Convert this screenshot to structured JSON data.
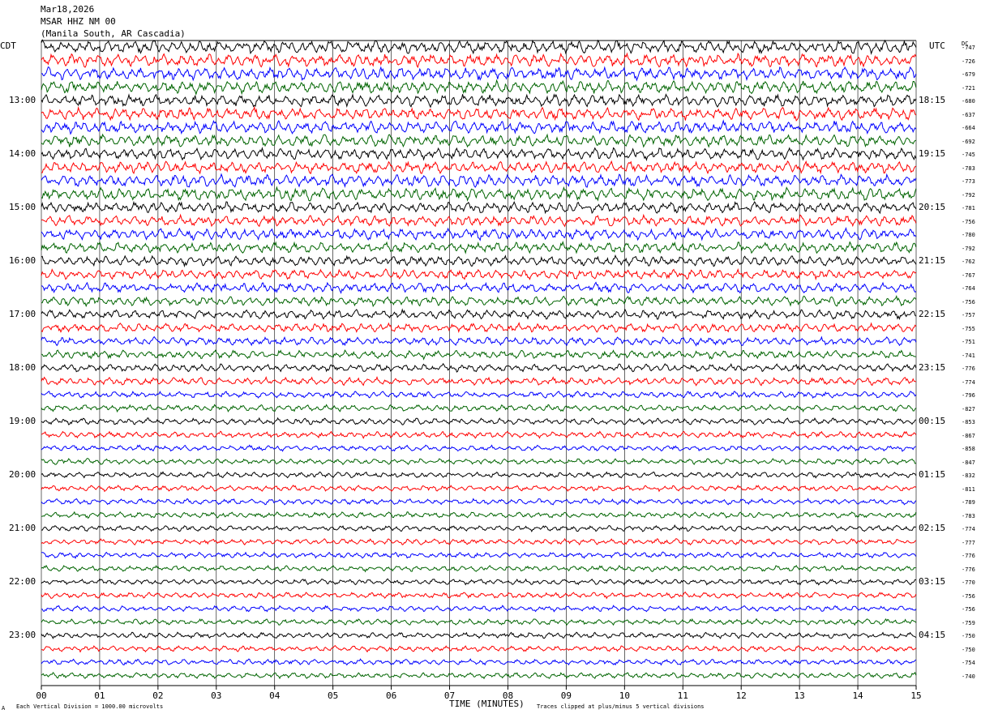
{
  "header": {
    "date": "Mar18,2026",
    "station": "MSAR HHZ NM 00",
    "location": "(Manila South, AR Cascadia)"
  },
  "left_tz": "CDT",
  "right_tz": "UTC",
  "dc_label": "DC",
  "footer": {
    "scale": "Each Vertical Division = 1000.00 microvolts",
    "clip": "Traces clipped at plus/minus 5 vertical divisions",
    "corner_mark": "A"
  },
  "colors": {
    "black": "#000000",
    "red": "#ff0000",
    "blue": "#0000ff",
    "green": "#006400",
    "grid": "#000000"
  },
  "chart_data": {
    "type": "line",
    "title": "MSAR HHZ NM 00",
    "xlabel": "TIME (MINUTES)",
    "ylabel": "",
    "xlim": [
      0,
      15
    ],
    "x_ticks": [
      "00",
      "01",
      "02",
      "03",
      "04",
      "05",
      "06",
      "07",
      "08",
      "09",
      "10",
      "11",
      "12",
      "13",
      "14",
      "15"
    ],
    "trace_count": 48,
    "trace_colors_cycle": [
      "black",
      "red",
      "blue",
      "green"
    ],
    "left_hour_labels": [
      "13:00",
      "14:00",
      "15:00",
      "16:00",
      "17:00",
      "18:00",
      "19:00",
      "20:00",
      "21:00",
      "22:00",
      "23:00"
    ],
    "right_hour_labels": [
      "18:15",
      "19:15",
      "20:15",
      "21:15",
      "22:15",
      "23:15",
      "00:15",
      "01:15",
      "02:15",
      "03:15",
      "04:15"
    ],
    "dc_offsets": [
      -747,
      -726,
      -679,
      -721,
      -680,
      -637,
      -664,
      -692,
      -745,
      -783,
      -773,
      -792,
      -781,
      -756,
      -780,
      -792,
      -762,
      -767,
      -764,
      -756,
      -757,
      -755,
      -751,
      -741,
      -776,
      -774,
      -796,
      -827,
      -853,
      -867,
      -858,
      -847,
      -832,
      -811,
      -789,
      -783,
      -774,
      -777,
      -776,
      -776,
      -770,
      -756,
      -756,
      -759,
      -750,
      -750,
      -754,
      -740
    ],
    "trace_amplitude_levels": [
      1.0,
      1.0,
      1.0,
      1.0,
      0.95,
      0.95,
      0.95,
      0.95,
      0.9,
      0.9,
      0.95,
      1.0,
      0.85,
      0.85,
      0.85,
      0.8,
      0.8,
      0.75,
      0.75,
      0.75,
      0.7,
      0.7,
      0.65,
      0.65,
      0.6,
      0.6,
      0.5,
      0.5,
      0.5,
      0.5,
      0.45,
      0.45,
      0.45,
      0.45,
      0.45,
      0.45,
      0.45,
      0.45,
      0.45,
      0.45,
      0.45,
      0.45,
      0.45,
      0.45,
      0.45,
      0.45,
      0.45,
      0.45
    ],
    "grid": true
  }
}
